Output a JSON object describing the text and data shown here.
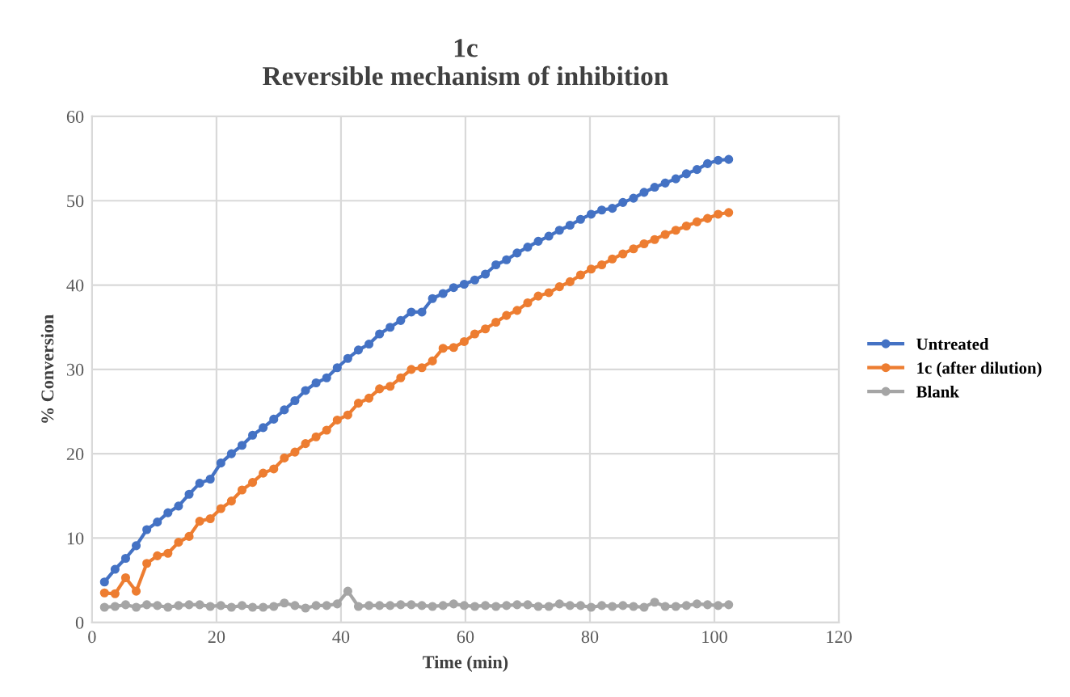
{
  "chart_data": {
    "type": "line",
    "title": "1c\nReversible mechanism of inhibition",
    "xlabel": "Time (min)",
    "ylabel": "% Conversion",
    "x": [
      2.0,
      3.7,
      5.4,
      7.1,
      8.8,
      10.5,
      12.2,
      13.9,
      15.6,
      17.3,
      19.0,
      20.7,
      22.4,
      24.1,
      25.8,
      27.5,
      29.2,
      30.9,
      32.6,
      34.3,
      36.0,
      37.7,
      39.4,
      41.1,
      42.8,
      44.5,
      46.2,
      47.9,
      49.6,
      51.3,
      53.0,
      54.7,
      56.4,
      58.1,
      59.8,
      61.5,
      63.2,
      64.9,
      66.6,
      68.3,
      70.0,
      71.7,
      73.4,
      75.1,
      76.8,
      78.5,
      80.2,
      81.9,
      83.6,
      85.3,
      87.0,
      88.7,
      90.4,
      92.1,
      93.8,
      95.5,
      97.2,
      98.9,
      100.6,
      102.3
    ],
    "series": [
      {
        "name": "Untreated",
        "color": "#4472c4",
        "values": [
          4.8,
          6.3,
          7.6,
          9.1,
          11.0,
          11.9,
          13.0,
          13.8,
          15.2,
          16.5,
          17.0,
          18.9,
          20.0,
          21.0,
          22.2,
          23.1,
          24.1,
          25.2,
          26.3,
          27.5,
          28.4,
          29.0,
          30.2,
          31.3,
          32.3,
          33.0,
          34.2,
          35.0,
          35.8,
          36.8,
          36.8,
          38.4,
          39.0,
          39.7,
          40.1,
          40.6,
          41.3,
          42.4,
          43.0,
          43.8,
          44.5,
          45.2,
          45.8,
          46.5,
          47.1,
          47.8,
          48.4,
          48.9,
          49.1,
          49.8,
          50.3,
          51.0,
          51.6,
          52.1,
          52.6,
          53.2,
          53.7,
          54.4,
          54.8,
          54.9
        ]
      },
      {
        "name": "1c (after dilution)",
        "color": "#ed7d31",
        "values": [
          3.5,
          3.4,
          5.3,
          3.7,
          7.0,
          7.9,
          8.2,
          9.5,
          10.2,
          12.0,
          12.3,
          13.5,
          14.4,
          15.7,
          16.6,
          17.7,
          18.2,
          19.5,
          20.2,
          21.2,
          22.0,
          22.8,
          24.0,
          24.6,
          26.0,
          26.6,
          27.7,
          28.0,
          29.0,
          30.0,
          30.2,
          31.0,
          32.5,
          32.6,
          33.3,
          34.2,
          34.8,
          35.6,
          36.4,
          37.0,
          37.9,
          38.7,
          39.1,
          39.8,
          40.4,
          41.2,
          41.9,
          42.4,
          43.1,
          43.7,
          44.3,
          44.9,
          45.4,
          46.0,
          46.5,
          47.0,
          47.5,
          47.9,
          48.4,
          48.6
        ]
      },
      {
        "name": "Blank",
        "color": "#a5a5a5",
        "values": [
          1.8,
          1.9,
          2.1,
          1.8,
          2.1,
          2.0,
          1.8,
          2.0,
          2.1,
          2.1,
          1.9,
          2.0,
          1.8,
          2.0,
          1.8,
          1.8,
          1.9,
          2.3,
          2.0,
          1.7,
          2.0,
          2.0,
          2.2,
          3.7,
          1.9,
          2.0,
          2.0,
          2.0,
          2.1,
          2.1,
          2.0,
          1.9,
          2.0,
          2.2,
          2.0,
          1.9,
          2.0,
          1.9,
          2.0,
          2.1,
          2.1,
          1.9,
          1.9,
          2.2,
          2.0,
          2.0,
          1.8,
          2.0,
          1.9,
          2.0,
          1.9,
          1.8,
          2.4,
          1.9,
          1.9,
          2.0,
          2.2,
          2.1,
          2.0,
          2.1
        ]
      }
    ],
    "xlim": [
      0,
      120
    ],
    "xticks": [
      0,
      20,
      40,
      60,
      80,
      100,
      120
    ],
    "ylim": [
      0,
      60
    ],
    "yticks": [
      0,
      10,
      20,
      30,
      40,
      50,
      60
    ],
    "grid": true,
    "legend": "right",
    "marker": "circle",
    "line_style": "solid"
  }
}
